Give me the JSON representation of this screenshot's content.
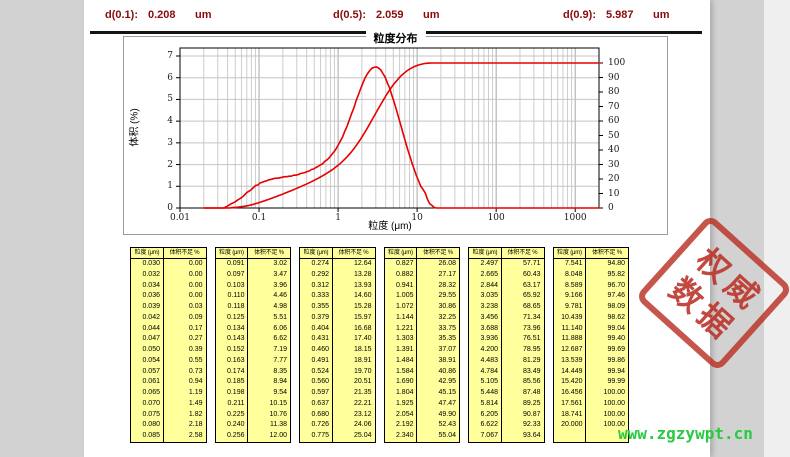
{
  "header": {
    "items": [
      {
        "label": "d(0.1):",
        "value": "0.208",
        "unit": "um"
      },
      {
        "label": "d(0.5):",
        "value": "2.059",
        "unit": "um"
      },
      {
        "label": "d(0.9):",
        "value": "5.987",
        "unit": "um"
      }
    ]
  },
  "chart_data": {
    "type": "line",
    "title": "粒度分布",
    "xlabel": "粒度 (μm)",
    "ylabel_left": "体积 (%)",
    "x_scale": "log",
    "xlim": [
      0.01,
      2000
    ],
    "ylim_left": [
      0,
      7
    ],
    "ylim_right": [
      0,
      100
    ],
    "x_ticks": [
      "0.01",
      "0.1",
      "1",
      "10",
      "100",
      "1000"
    ],
    "y_ticks_left": [
      "7",
      "6",
      "5",
      "4",
      "3",
      "2",
      "1",
      "0"
    ],
    "y_ticks_right": [
      "100",
      "90",
      "80",
      "70",
      "60",
      "50",
      "40",
      "30",
      "20",
      "10",
      "0"
    ],
    "grid": true,
    "line_color": "#e60000",
    "frequency_peak": 6.5,
    "series": [
      {
        "name": "cumulative-undersize-percent",
        "axis": "right"
      },
      {
        "name": "volume-frequency-percent",
        "axis": "left",
        "derivation": "scaled differences of cumulative curve"
      }
    ],
    "sizes_um": [
      "0.030",
      "0.032",
      "0.034",
      "0.036",
      "0.039",
      "0.042",
      "0.044",
      "0.047",
      "0.050",
      "0.054",
      "0.057",
      "0.061",
      "0.065",
      "0.070",
      "0.075",
      "0.080",
      "0.085",
      "0.091",
      "0.097",
      "0.103",
      "0.110",
      "0.118",
      "0.125",
      "0.134",
      "0.143",
      "0.152",
      "0.163",
      "0.174",
      "0.185",
      "0.198",
      "0.211",
      "0.225",
      "0.240",
      "0.256",
      "0.274",
      "0.292",
      "0.312",
      "0.333",
      "0.355",
      "0.379",
      "0.404",
      "0.431",
      "0.460",
      "0.491",
      "0.524",
      "0.560",
      "0.597",
      "0.637",
      "0.680",
      "0.726",
      "0.775",
      "0.827",
      "0.882",
      "0.941",
      "1.005",
      "1.072",
      "1.144",
      "1.221",
      "1.303",
      "1.391",
      "1.484",
      "1.584",
      "1.690",
      "1.804",
      "1.925",
      "2.054",
      "2.192",
      "2.340",
      "2.497",
      "2.665",
      "2.844",
      "3.035",
      "3.238",
      "3.456",
      "3.688",
      "3.936",
      "4.200",
      "4.483",
      "4.784",
      "5.105",
      "5.448",
      "5.814",
      "6.205",
      "6.622",
      "7.067",
      "7.541",
      "8.048",
      "8.589",
      "9.166",
      "9.781",
      "10.439",
      "11.140",
      "11.888",
      "12.687",
      "13.539",
      "14.449",
      "15.420",
      "16.456",
      "17.561",
      "18.741",
      "20.000"
    ],
    "cumulative_percent": [
      "0.00",
      "0.00",
      "0.00",
      "0.00",
      "0.03",
      "0.09",
      "0.17",
      "0.27",
      "0.39",
      "0.55",
      "0.73",
      "0.94",
      "1.19",
      "1.49",
      "1.82",
      "2.18",
      "2.58",
      "3.02",
      "3.47",
      "3.96",
      "4.46",
      "4.98",
      "5.51",
      "6.06",
      "6.62",
      "7.19",
      "7.77",
      "8.35",
      "8.94",
      "9.54",
      "10.15",
      "10.76",
      "11.38",
      "12.00",
      "12.64",
      "13.28",
      "13.93",
      "14.60",
      "15.28",
      "15.97",
      "16.68",
      "17.40",
      "18.15",
      "18.91",
      "19.70",
      "20.51",
      "21.35",
      "22.21",
      "23.12",
      "24.06",
      "25.04",
      "26.08",
      "27.17",
      "28.32",
      "29.55",
      "30.86",
      "32.25",
      "33.75",
      "35.35",
      "37.07",
      "38.91",
      "40.86",
      "42.95",
      "45.15",
      "47.47",
      "49.90",
      "52.43",
      "55.04",
      "57.71",
      "60.43",
      "63.17",
      "65.92",
      "68.65",
      "71.34",
      "73.96",
      "76.51",
      "78.95",
      "81.29",
      "83.49",
      "85.56",
      "87.48",
      "89.25",
      "90.87",
      "92.33",
      "93.64",
      "94.80",
      "95.82",
      "96.70",
      "97.46",
      "98.09",
      "98.62",
      "99.04",
      "99.40",
      "99.69",
      "99.86",
      "99.94",
      "99.99",
      "100.00",
      "100.00",
      "100.00",
      "100.00"
    ]
  },
  "tables": {
    "col1_header": "粒度 (μm)",
    "col2_header": "体积不足 %",
    "rows_per_table": 17,
    "table_count": 6
  },
  "stamp": {
    "line1": "权威",
    "line2": "数据",
    "color": "#ba3024"
  },
  "watermark": {
    "text": "www.zgzywpt.cn",
    "color": "#27cb41"
  }
}
